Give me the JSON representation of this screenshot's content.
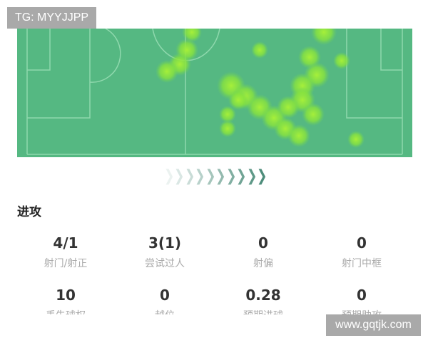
{
  "watermarks": {
    "top": "TG: MYYJJPP",
    "bottom": "www.gqtjk.com"
  },
  "colors": {
    "pitch": "#55b882",
    "heat": "#8de34a",
    "line": "#8fd8ad"
  },
  "section": {
    "title": "进攻"
  },
  "stats": [
    {
      "value": "4/1",
      "label": "射门/射正"
    },
    {
      "value": "3(1)",
      "label": "尝试过人"
    },
    {
      "value": "0",
      "label": "射偏"
    },
    {
      "value": "0",
      "label": "射门中框"
    },
    {
      "value": "10",
      "label": "丢失球权"
    },
    {
      "value": "0",
      "label": "越位"
    },
    {
      "value": "0.28",
      "label": "预期进球"
    },
    {
      "value": "0",
      "label": "预期助攻"
    }
  ]
}
